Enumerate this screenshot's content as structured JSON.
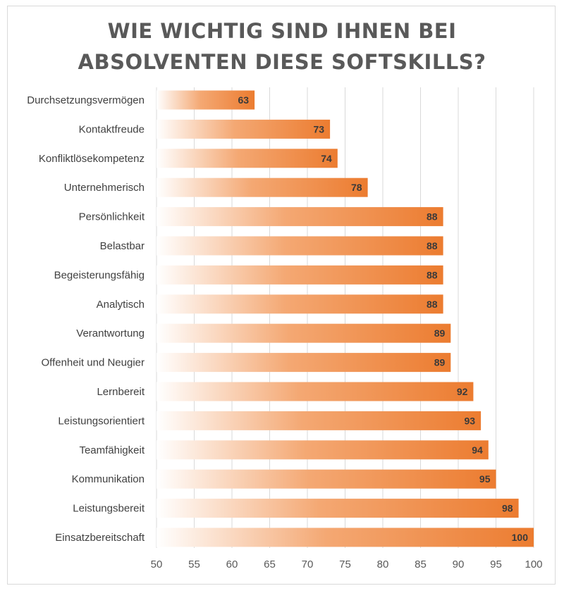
{
  "chart_data": {
    "type": "bar",
    "orientation": "horizontal",
    "title_lines": [
      "WIE WICHTIG SIND IHNEN BEI",
      "ABSOLVENTEN DIESE SOFTSKILLS?"
    ],
    "categories": [
      "Durchsetzungsvermögen",
      "Kontaktfreude",
      "Konfliktlösekompetenz",
      "Unternehmerisch",
      "Persönlichkeit",
      "Belastbar",
      "Begeisterungsfähig",
      "Analytisch",
      "Verantwortung",
      "Offenheit und Neugier",
      "Lernbereit",
      "Leistungsorientiert",
      "Teamfähigkeit",
      "Kommunikation",
      "Leistungsbereit",
      "Einsatzbereitschaft"
    ],
    "values": [
      63,
      73,
      74,
      78,
      88,
      88,
      88,
      88,
      89,
      89,
      92,
      93,
      94,
      95,
      98,
      100
    ],
    "xlim": [
      50,
      100
    ],
    "xticks": [
      50,
      55,
      60,
      65,
      70,
      75,
      80,
      85,
      90,
      95,
      100
    ],
    "grid": true,
    "data_labels": true,
    "bar_color": "#ec7c30",
    "bar_fade_color": "#ffffff",
    "legend": "none"
  }
}
